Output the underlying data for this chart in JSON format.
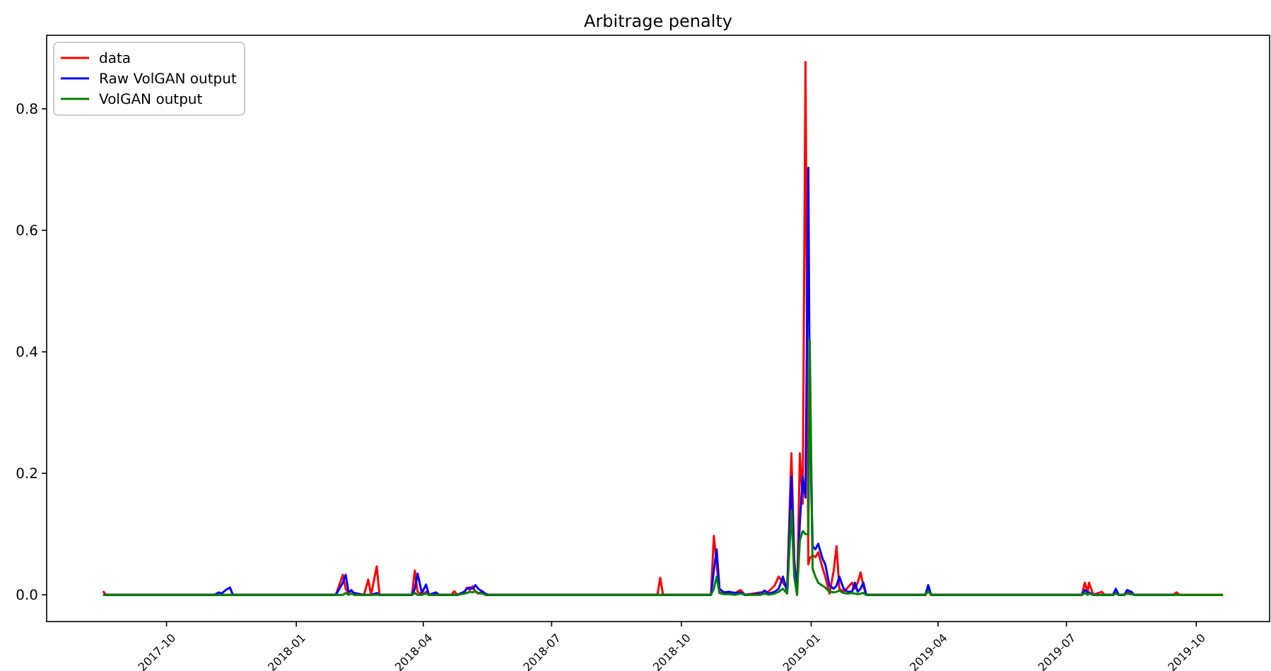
{
  "chart_data": {
    "type": "line",
    "title": "Arbitrage penalty",
    "x": [
      "2017-08-17",
      "2017-08-19",
      "2017-11-04",
      "2017-11-07",
      "2017-11-09",
      "2017-11-12",
      "2017-11-15",
      "2017-11-17",
      "2018-01-29",
      "2018-02-03",
      "2018-02-05",
      "2018-02-07",
      "2018-02-09",
      "2018-02-11",
      "2018-02-18",
      "2018-02-21",
      "2018-02-23",
      "2018-02-27",
      "2018-03-01",
      "2018-03-24",
      "2018-03-26",
      "2018-03-28",
      "2018-03-31",
      "2018-04-03",
      "2018-04-05",
      "2018-04-10",
      "2018-04-12",
      "2018-04-21",
      "2018-04-23",
      "2018-04-25",
      "2018-04-30",
      "2018-05-02",
      "2018-05-04",
      "2018-05-06",
      "2018-05-08",
      "2018-05-10",
      "2018-05-13",
      "2018-05-15",
      "2018-05-17",
      "2018-09-14",
      "2018-09-16",
      "2018-09-18",
      "2018-10-22",
      "2018-10-24",
      "2018-10-26",
      "2018-10-28",
      "2018-10-31",
      "2018-11-04",
      "2018-11-08",
      "2018-11-12",
      "2018-11-15",
      "2018-11-26",
      "2018-11-29",
      "2018-12-02",
      "2018-12-06",
      "2018-12-09",
      "2018-12-12",
      "2018-12-15",
      "2018-12-18",
      "2018-12-20",
      "2018-12-22",
      "2018-12-24",
      "2018-12-26",
      "2018-12-28",
      "2018-12-30",
      "2018-12-31",
      "2019-01-02",
      "2019-01-04",
      "2019-01-06",
      "2019-01-09",
      "2019-01-11",
      "2019-01-14",
      "2019-01-17",
      "2019-01-19",
      "2019-01-21",
      "2019-01-24",
      "2019-01-27",
      "2019-01-30",
      "2019-02-01",
      "2019-02-03",
      "2019-02-05",
      "2019-02-07",
      "2019-02-09",
      "2019-03-23",
      "2019-03-25",
      "2019-03-27",
      "2019-07-12",
      "2019-07-14",
      "2019-07-16",
      "2019-07-17",
      "2019-07-20",
      "2019-07-26",
      "2019-07-28",
      "2019-08-03",
      "2019-08-05",
      "2019-08-07",
      "2019-08-11",
      "2019-08-13",
      "2019-08-16",
      "2019-08-18",
      "2019-09-15",
      "2019-09-17",
      "2019-09-19",
      "2019-10-20"
    ],
    "series": [
      {
        "name": "data",
        "color": "#ff0000",
        "values": [
          0.006,
          0,
          0,
          0,
          0,
          0,
          0,
          0,
          0,
          0.033,
          0.01,
          0.003,
          0.008,
          0,
          0,
          0.025,
          0,
          0.047,
          0,
          0,
          0.04,
          0.005,
          0,
          0.005,
          0,
          0,
          0,
          0,
          0.006,
          0,
          0.003,
          0.012,
          0.008,
          0.014,
          0.005,
          0.002,
          0.006,
          0,
          0,
          0,
          0.028,
          0,
          0,
          0.097,
          0.05,
          0.003,
          0.005,
          0.002,
          0.003,
          0.008,
          0,
          0.004,
          0.002,
          0.006,
          0.015,
          0.03,
          0.02,
          0.01,
          0.233,
          0.06,
          0,
          0.233,
          0.15,
          0.877,
          0.05,
          0.06,
          0.065,
          0.062,
          0.07,
          0.045,
          0.03,
          0.002,
          0.04,
          0.08,
          0.01,
          0.005,
          0.012,
          0.02,
          0.01,
          0.02,
          0.037,
          0.015,
          0,
          0,
          0.008,
          0,
          0,
          0.02,
          0.005,
          0.02,
          0,
          0.005,
          0,
          0,
          0.003,
          0,
          0,
          0.004,
          0.003,
          0,
          0,
          0.004,
          0,
          0
        ]
      },
      {
        "name": "Raw VolGAN output",
        "color": "#0000ff",
        "values": [
          0,
          0,
          0,
          0.004,
          0.002,
          0.008,
          0.012,
          0,
          0,
          0.02,
          0.033,
          0.005,
          0.007,
          0.003,
          0,
          0,
          0,
          0.003,
          0,
          0,
          0.01,
          0.035,
          0.003,
          0.017,
          0,
          0.004,
          0,
          0,
          0,
          0,
          0.005,
          0.01,
          0.012,
          0.01,
          0.016,
          0.01,
          0.005,
          0.002,
          0,
          0,
          0,
          0,
          0,
          0.04,
          0.075,
          0.01,
          0.004,
          0.005,
          0.003,
          0.004,
          0,
          0.002,
          0.007,
          0.002,
          0.005,
          0.01,
          0.03,
          0.005,
          0.194,
          0.05,
          0.01,
          0.12,
          0.194,
          0.16,
          0.703,
          0.3,
          0.08,
          0.075,
          0.084,
          0.06,
          0.05,
          0.015,
          0.01,
          0.015,
          0.03,
          0.01,
          0.005,
          0.005,
          0.02,
          0.005,
          0.01,
          0.02,
          0,
          0,
          0.016,
          0,
          0,
          0.008,
          0.004,
          0.004,
          0,
          0,
          0,
          0,
          0.01,
          0,
          0,
          0.008,
          0.005,
          0,
          0,
          null,
          null,
          null
        ]
      },
      {
        "name": "VolGAN output",
        "color": "#008000",
        "values": [
          0,
          0,
          0,
          0,
          0,
          0,
          0,
          0,
          0,
          0,
          0.003,
          0,
          0.002,
          0,
          0,
          0,
          0,
          0,
          0,
          0,
          0.003,
          0,
          0,
          0.002,
          0,
          0,
          0,
          0,
          0,
          0,
          0.002,
          0.003,
          0.005,
          0.004,
          0.006,
          0.003,
          0.002,
          0,
          0,
          0,
          0,
          0,
          0,
          0.01,
          0.03,
          0.003,
          0.001,
          0.001,
          0,
          0.002,
          0,
          0,
          0.002,
          0,
          0.002,
          0.005,
          0.01,
          0.002,
          0.138,
          0.03,
          0,
          0.09,
          0.105,
          0.1,
          0.1,
          0.42,
          0.043,
          0.03,
          0.02,
          0.015,
          0.012,
          0.005,
          0.004,
          0.005,
          0.007,
          0.003,
          0.002,
          0.003,
          0.002,
          0.001,
          0.002,
          0.003,
          0,
          0,
          0.006,
          0,
          0,
          0.003,
          0,
          0.002,
          0,
          0,
          0,
          0,
          0.002,
          0,
          0,
          0.002,
          0.001,
          0,
          0,
          0,
          0,
          0
        ]
      }
    ],
    "xlim": [
      "2017-07-08",
      "2019-11-22"
    ],
    "xticks": [
      {
        "value": "2017-10-01",
        "label": "2017-10"
      },
      {
        "value": "2018-01-01",
        "label": "2018-01"
      },
      {
        "value": "2018-04-01",
        "label": "2018-04"
      },
      {
        "value": "2018-07-01",
        "label": "2018-07"
      },
      {
        "value": "2018-10-01",
        "label": "2018-10"
      },
      {
        "value": "2019-01-01",
        "label": "2019-01"
      },
      {
        "value": "2019-04-01",
        "label": "2019-04"
      },
      {
        "value": "2019-07-01",
        "label": "2019-07"
      },
      {
        "value": "2019-10-01",
        "label": "2019-10"
      }
    ],
    "ylim": [
      -0.044,
      0.921
    ],
    "yticks": [
      {
        "value": 0,
        "label": "0.0"
      },
      0.2,
      0.4,
      0.6,
      0.8
    ],
    "legend": "top left",
    "grid": false
  }
}
